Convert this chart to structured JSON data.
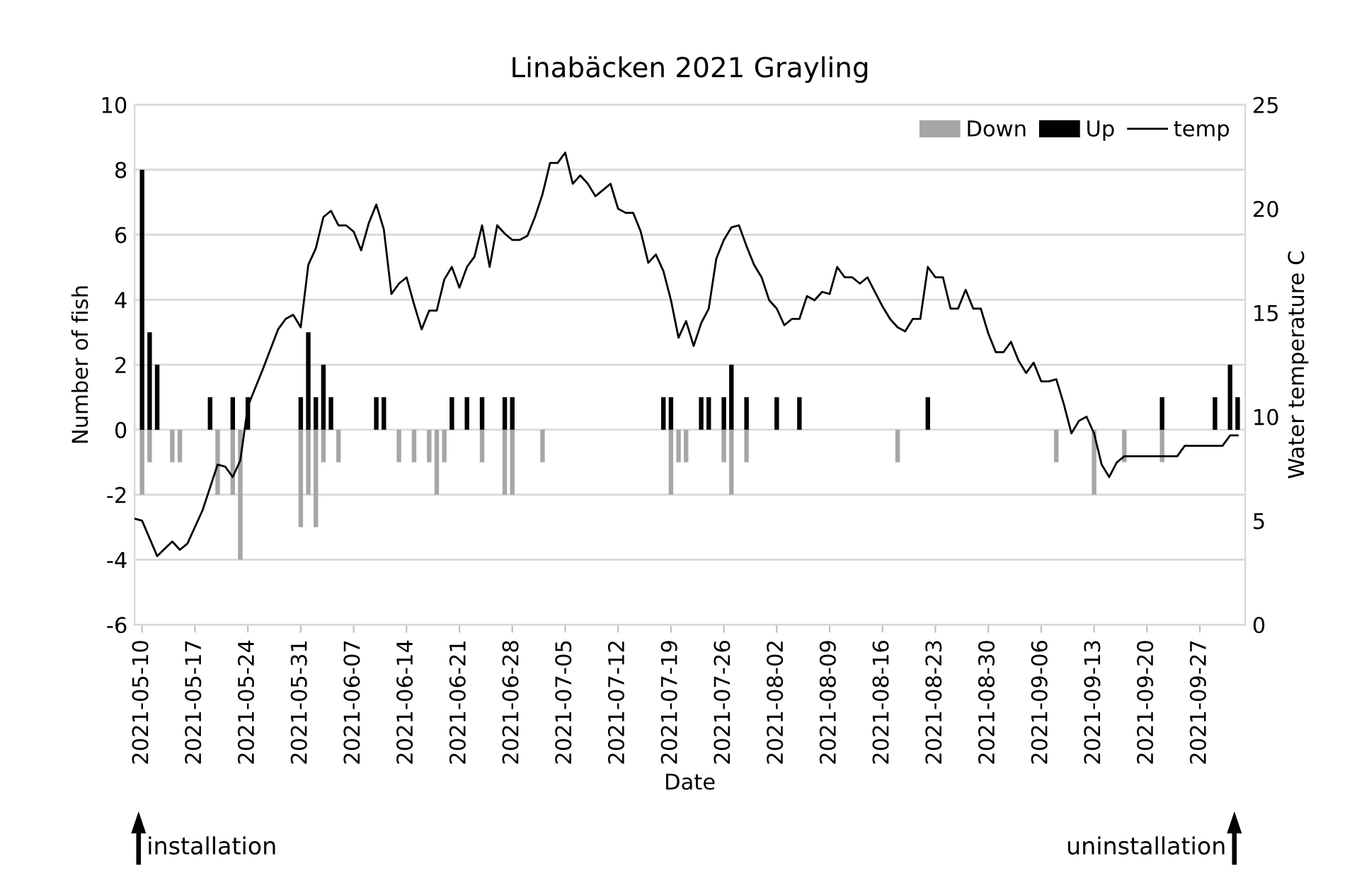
{
  "chart_data": {
    "type": "bar",
    "title": "Linabäcken 2021 Grayling",
    "xlabel": "Date",
    "ylabel": "Number of fish",
    "y2label": "Water temperature C",
    "series": [
      {
        "name": "Down",
        "color": "#a6a6a6",
        "x": [
          "2021-05-10",
          "2021-05-11",
          "2021-05-14",
          "2021-05-15",
          "2021-05-20",
          "2021-05-22",
          "2021-05-23",
          "2021-05-31",
          "2021-06-01",
          "2021-06-02",
          "2021-06-03",
          "2021-06-05",
          "2021-06-13",
          "2021-06-15",
          "2021-06-17",
          "2021-06-18",
          "2021-06-19",
          "2021-06-24",
          "2021-06-27",
          "2021-06-28",
          "2021-07-02",
          "2021-07-19",
          "2021-07-20",
          "2021-07-21",
          "2021-07-26",
          "2021-07-27",
          "2021-07-29",
          "2021-08-18",
          "2021-09-08",
          "2021-09-13",
          "2021-09-17",
          "2021-09-22"
        ],
        "values": [
          -2,
          -1,
          -1,
          -1,
          -2,
          -2,
          -4,
          -3,
          -2,
          -3,
          -1,
          -1,
          -1,
          -1,
          -1,
          -2,
          -1,
          -1,
          -2,
          -2,
          -1,
          -2,
          -1,
          -1,
          -1,
          -2,
          -1,
          -1,
          -1,
          -2,
          -1,
          -1
        ]
      },
      {
        "name": "Up",
        "color": "#000000",
        "x": [
          "2021-05-10",
          "2021-05-11",
          "2021-05-12",
          "2021-05-19",
          "2021-05-22",
          "2021-05-24",
          "2021-05-31",
          "2021-06-01",
          "2021-06-02",
          "2021-06-03",
          "2021-06-04",
          "2021-06-10",
          "2021-06-11",
          "2021-06-20",
          "2021-06-22",
          "2021-06-24",
          "2021-06-27",
          "2021-06-28",
          "2021-07-18",
          "2021-07-19",
          "2021-07-23",
          "2021-07-24",
          "2021-07-26",
          "2021-07-27",
          "2021-07-29",
          "2021-08-02",
          "2021-08-05",
          "2021-08-22",
          "2021-09-22",
          "2021-09-29",
          "2021-10-01",
          "2021-10-02"
        ],
        "values": [
          8,
          3,
          2,
          1,
          1,
          1,
          1,
          3,
          1,
          2,
          1,
          1,
          1,
          1,
          1,
          1,
          1,
          1,
          1,
          1,
          1,
          1,
          1,
          2,
          1,
          1,
          1,
          1,
          1,
          1,
          2,
          1
        ]
      },
      {
        "name": "temp",
        "color": "#000000",
        "type": "line",
        "axis": "y2",
        "x": [
          "2021-05-09",
          "2021-05-10",
          "2021-05-12",
          "2021-05-14",
          "2021-05-15",
          "2021-05-16",
          "2021-05-18",
          "2021-05-20",
          "2021-05-21",
          "2021-05-22",
          "2021-05-23",
          "2021-05-24",
          "2021-05-26",
          "2021-05-28",
          "2021-05-29",
          "2021-05-30",
          "2021-05-31",
          "2021-06-01",
          "2021-06-02",
          "2021-06-03",
          "2021-06-04",
          "2021-06-05",
          "2021-06-06",
          "2021-06-07",
          "2021-06-08",
          "2021-06-09",
          "2021-06-10",
          "2021-06-11",
          "2021-06-12",
          "2021-06-13",
          "2021-06-14",
          "2021-06-15",
          "2021-06-16",
          "2021-06-17",
          "2021-06-18",
          "2021-06-19",
          "2021-06-20",
          "2021-06-21",
          "2021-06-22",
          "2021-06-23",
          "2021-06-24",
          "2021-06-25",
          "2021-06-26",
          "2021-06-27",
          "2021-06-28",
          "2021-06-29",
          "2021-06-30",
          "2021-07-01",
          "2021-07-02",
          "2021-07-03",
          "2021-07-04",
          "2021-07-05",
          "2021-07-06",
          "2021-07-07",
          "2021-07-08",
          "2021-07-09",
          "2021-07-10",
          "2021-07-11",
          "2021-07-12",
          "2021-07-13",
          "2021-07-14",
          "2021-07-15",
          "2021-07-16",
          "2021-07-17",
          "2021-07-18",
          "2021-07-19",
          "2021-07-20",
          "2021-07-21",
          "2021-07-22",
          "2021-07-23",
          "2021-07-24",
          "2021-07-25",
          "2021-07-26",
          "2021-07-27",
          "2021-07-28",
          "2021-07-29",
          "2021-07-30",
          "2021-07-31",
          "2021-08-01",
          "2021-08-02",
          "2021-08-03",
          "2021-08-04",
          "2021-08-05",
          "2021-08-06",
          "2021-08-07",
          "2021-08-08",
          "2021-08-09",
          "2021-08-10",
          "2021-08-11",
          "2021-08-12",
          "2021-08-13",
          "2021-08-14",
          "2021-08-15",
          "2021-08-16",
          "2021-08-17",
          "2021-08-18",
          "2021-08-19",
          "2021-08-20",
          "2021-08-21",
          "2021-08-22",
          "2021-08-23",
          "2021-08-24",
          "2021-08-25",
          "2021-08-26",
          "2021-08-27",
          "2021-08-28",
          "2021-08-29",
          "2021-08-30",
          "2021-08-31",
          "2021-09-01",
          "2021-09-02",
          "2021-09-03",
          "2021-09-04",
          "2021-09-05",
          "2021-09-06",
          "2021-09-07",
          "2021-09-08",
          "2021-09-09",
          "2021-09-10",
          "2021-09-11",
          "2021-09-12",
          "2021-09-13",
          "2021-09-14",
          "2021-09-15",
          "2021-09-16",
          "2021-09-17",
          "2021-09-24",
          "2021-09-25",
          "2021-09-30",
          "2021-10-01",
          "2021-10-02"
        ],
        "values": [
          5.1,
          5.0,
          3.3,
          4.0,
          3.6,
          3.9,
          5.5,
          7.7,
          7.6,
          7.1,
          7.9,
          10.5,
          12.3,
          14.2,
          14.7,
          14.9,
          14.3,
          17.3,
          18.1,
          19.6,
          19.9,
          19.2,
          19.2,
          18.9,
          18.0,
          19.3,
          20.2,
          19.0,
          15.9,
          16.4,
          16.7,
          15.4,
          14.2,
          15.1,
          15.1,
          16.6,
          17.2,
          16.2,
          17.2,
          17.7,
          19.2,
          17.2,
          19.2,
          18.8,
          18.5,
          18.5,
          18.7,
          19.6,
          20.7,
          22.2,
          22.2,
          22.7,
          21.2,
          21.6,
          21.2,
          20.6,
          20.9,
          21.2,
          20.0,
          19.8,
          19.8,
          18.9,
          17.4,
          17.8,
          17.0,
          15.6,
          13.8,
          14.6,
          13.4,
          14.5,
          15.2,
          17.6,
          18.5,
          19.1,
          19.2,
          18.2,
          17.3,
          16.7,
          15.6,
          15.2,
          14.4,
          14.7,
          14.7,
          15.8,
          15.6,
          16.0,
          15.9,
          17.2,
          16.7,
          16.7,
          16.4,
          16.7,
          16.0,
          15.3,
          14.7,
          14.3,
          14.1,
          14.7,
          14.7,
          17.2,
          16.7,
          16.7,
          15.2,
          15.2,
          16.1,
          15.2,
          15.2,
          14.0,
          13.1,
          13.1,
          13.6,
          12.7,
          12.1,
          12.6,
          11.7,
          11.7,
          11.8,
          10.6,
          9.2,
          9.8,
          10.0,
          9.2,
          7.7,
          7.1,
          7.8,
          8.1,
          8.1,
          8.6,
          8.6,
          9.1,
          9.1
        ]
      }
    ],
    "xlim": [
      "2021-05-09",
      "2021-10-03"
    ],
    "xticks": [
      "2021-05-10",
      "2021-05-17",
      "2021-05-24",
      "2021-05-31",
      "2021-06-07",
      "2021-06-14",
      "2021-06-21",
      "2021-06-28",
      "2021-07-05",
      "2021-07-12",
      "2021-07-19",
      "2021-07-26",
      "2021-08-02",
      "2021-08-09",
      "2021-08-16",
      "2021-08-23",
      "2021-08-30",
      "2021-09-06",
      "2021-09-13",
      "2021-09-20",
      "2021-09-27"
    ],
    "ylim": [
      -6,
      10
    ],
    "yticks": [
      -6,
      -4,
      -2,
      0,
      2,
      4,
      6,
      8,
      10
    ],
    "y2lim": [
      0,
      25
    ],
    "y2ticks": [
      0,
      5,
      10,
      15,
      20,
      25
    ],
    "grid": "y",
    "legend": "top right",
    "annotations": [
      "installation",
      "uninstallation"
    ]
  }
}
